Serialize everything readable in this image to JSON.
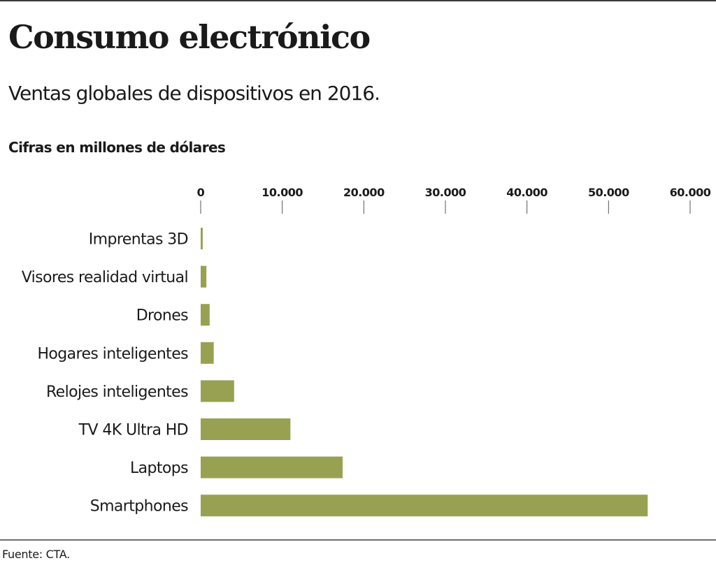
{
  "header": {
    "title": "Consumo electrónico",
    "subtitle": "Ventas globales de dispositivos en 2016.",
    "unit_label": "Cifras en millones de dólares"
  },
  "footer": {
    "source": "Fuente: CTA."
  },
  "colors": {
    "bar": "#98a151",
    "text": "#1a1a1a",
    "rule": "#3a3a3a"
  },
  "chart_data": {
    "type": "bar",
    "orientation": "horizontal",
    "title": "Consumo electrónico",
    "subtitle": "Ventas globales de dispositivos en 2016.",
    "xlabel": "Cifras en millones de dólares",
    "ylabel": "",
    "xlim": [
      0,
      60000
    ],
    "xticks": [
      0,
      10000,
      20000,
      30000,
      40000,
      50000,
      60000
    ],
    "xtick_labels": [
      "0",
      "10.000",
      "20.000",
      "30.000",
      "40.000",
      "50.000",
      "60.000"
    ],
    "axis_position": "top",
    "grid": false,
    "categories": [
      "Imprentas 3D",
      "Visores realidad virtual",
      "Drones",
      "Hogares inteligentes",
      "Relojes inteligentes",
      "TV 4K Ultra HD",
      "Laptops",
      "Smartphones"
    ],
    "values": [
      250,
      700,
      1100,
      1600,
      4100,
      11000,
      17400,
      54800
    ],
    "source": "Fuente: CTA."
  }
}
